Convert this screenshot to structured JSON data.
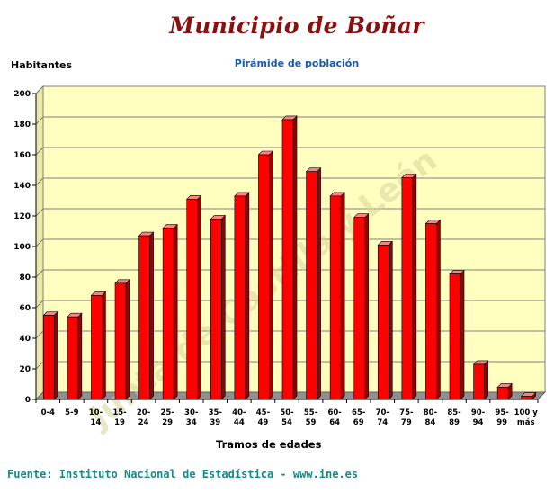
{
  "header": {
    "title": "Municipio de Boñar",
    "subtitle": "Pirámide de población"
  },
  "footer": {
    "source": "Fuente: Instituto Nacional de Estadística - www.ine.es"
  },
  "watermark": {
    "text": "Junta de Castilla y León"
  },
  "colors": {
    "bar_front": "#ff0000",
    "bar_side": "#990000",
    "bar_top": "#ff8080",
    "plot_background": "#ffffc0",
    "title": "#8b1010",
    "subtitle": "#1a5aa8",
    "source": "#148a8a"
  },
  "chart_data": {
    "type": "bar",
    "title": "Pirámide de población",
    "xlabel": "Tramos de edades",
    "ylabel": "Habitantes",
    "ylim": [
      0,
      200
    ],
    "yticks": [
      0,
      20,
      40,
      60,
      80,
      100,
      120,
      140,
      160,
      180,
      200
    ],
    "grid": true,
    "categories": [
      [
        "0-4"
      ],
      [
        "5-9"
      ],
      [
        "10-",
        "14"
      ],
      [
        "15-",
        "19"
      ],
      [
        "20-",
        "24"
      ],
      [
        "25-",
        "29"
      ],
      [
        "30-",
        "34"
      ],
      [
        "35-",
        "39"
      ],
      [
        "40-",
        "44"
      ],
      [
        "45-",
        "49"
      ],
      [
        "50-",
        "54"
      ],
      [
        "55-",
        "59"
      ],
      [
        "60-",
        "64"
      ],
      [
        "65-",
        "69"
      ],
      [
        "70-",
        "74"
      ],
      [
        "75-",
        "79"
      ],
      [
        "80-",
        "84"
      ],
      [
        "85-",
        "89"
      ],
      [
        "90-",
        "94"
      ],
      [
        "95-",
        "99"
      ],
      [
        "100 y",
        "más"
      ]
    ],
    "values": [
      55,
      54,
      68,
      76,
      107,
      112,
      131,
      118,
      133,
      160,
      183,
      149,
      133,
      119,
      101,
      145,
      115,
      82,
      23,
      8,
      2
    ]
  }
}
